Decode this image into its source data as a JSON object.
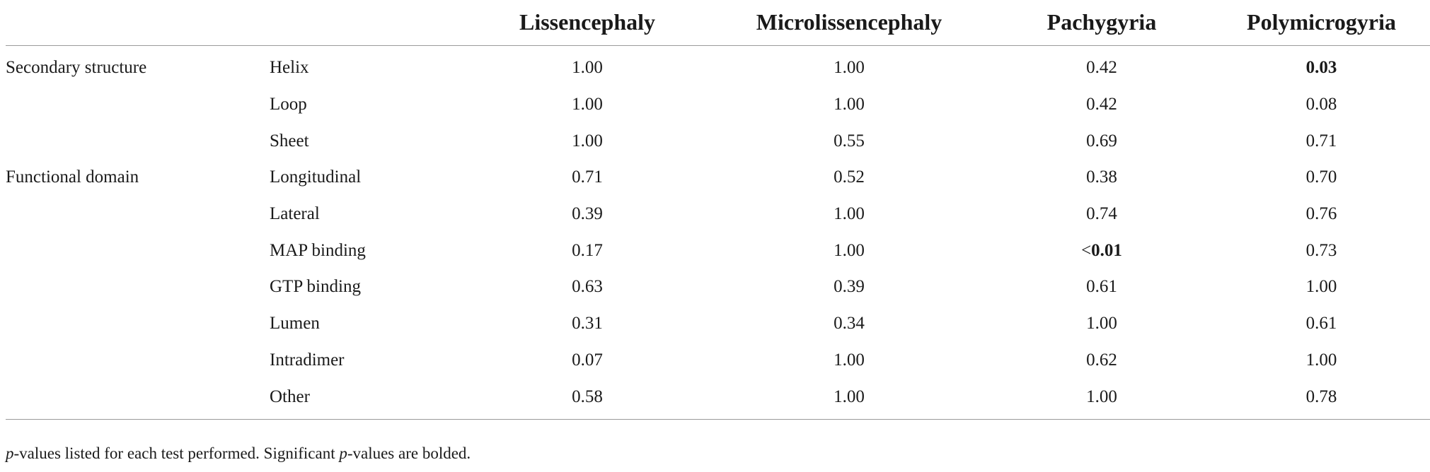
{
  "table": {
    "columns": [
      "",
      "",
      "Lissencephaly",
      "Microlissencephaly",
      "Pachygyria",
      "Polymicrogyria"
    ],
    "rows": [
      {
        "group": "Secondary structure",
        "sub": "Helix",
        "values": [
          "1.00",
          "1.00",
          "0.42",
          "0.03"
        ],
        "bold": [
          false,
          false,
          false,
          true
        ]
      },
      {
        "group": "",
        "sub": "Loop",
        "values": [
          "1.00",
          "1.00",
          "0.42",
          "0.08"
        ],
        "bold": [
          false,
          false,
          false,
          false
        ]
      },
      {
        "group": "",
        "sub": "Sheet",
        "values": [
          "1.00",
          "0.55",
          "0.69",
          "0.71"
        ],
        "bold": [
          false,
          false,
          false,
          false
        ]
      },
      {
        "group": "Functional domain",
        "sub": "Longitudinal",
        "values": [
          "0.71",
          "0.52",
          "0.38",
          "0.70"
        ],
        "bold": [
          false,
          false,
          false,
          false
        ]
      },
      {
        "group": "",
        "sub": "Lateral",
        "values": [
          "0.39",
          "1.00",
          "0.74",
          "0.76"
        ],
        "bold": [
          false,
          false,
          false,
          false
        ]
      },
      {
        "group": "",
        "sub": "MAP binding",
        "values": [
          "0.17",
          "1.00",
          "<0.01",
          "0.73"
        ],
        "bold": [
          false,
          false,
          true,
          false
        ]
      },
      {
        "group": "",
        "sub": "GTP binding",
        "values": [
          "0.63",
          "0.39",
          "0.61",
          "1.00"
        ],
        "bold": [
          false,
          false,
          false,
          false
        ]
      },
      {
        "group": "",
        "sub": "Lumen",
        "values": [
          "0.31",
          "0.34",
          "1.00",
          "0.61"
        ],
        "bold": [
          false,
          false,
          false,
          false
        ]
      },
      {
        "group": "",
        "sub": "Intradimer",
        "values": [
          "0.07",
          "1.00",
          "0.62",
          "1.00"
        ],
        "bold": [
          false,
          false,
          false,
          false
        ]
      },
      {
        "group": "",
        "sub": "Other",
        "values": [
          "0.58",
          "1.00",
          "1.00",
          "0.78"
        ],
        "bold": [
          false,
          false,
          false,
          false
        ]
      }
    ]
  },
  "footnote": {
    "p1": "p",
    "t1": "-values listed for each test performed. Significant ",
    "p2": "p",
    "t2": "-values are bolded."
  }
}
